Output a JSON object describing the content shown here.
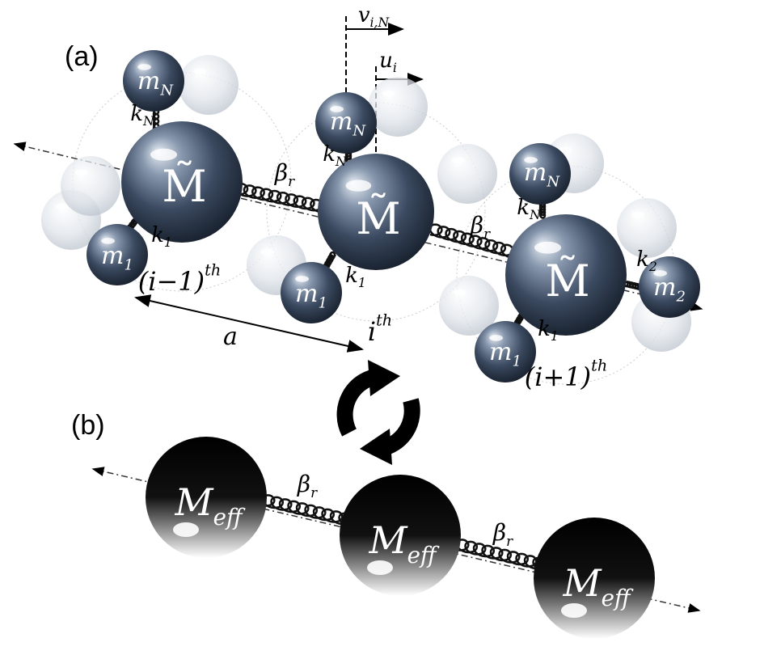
{
  "panel_a": {
    "label": "(a)",
    "labels": [
      {
        "base": "M̃"
      },
      {
        "base": "M̃"
      },
      {
        "base": "M̃"
      },
      {
        "base": "m",
        "sub": "N"
      },
      {
        "base": "m",
        "sub": "N"
      },
      {
        "base": "m",
        "sub": "N"
      },
      {
        "base": "m",
        "sub": "1"
      },
      {
        "base": "m",
        "sub": "1"
      },
      {
        "base": "m",
        "sub": "1"
      },
      {
        "base": "m",
        "sub": "2"
      },
      {
        "base": "k",
        "sub": "N"
      },
      {
        "base": "k",
        "sub": "N"
      },
      {
        "base": "k",
        "sub": "N"
      },
      {
        "base": "k",
        "sub": "1"
      },
      {
        "base": "k",
        "sub": "1"
      },
      {
        "base": "k",
        "sub": "1"
      },
      {
        "base": "k",
        "sub": "2"
      },
      {
        "base": "β",
        "sub": "r"
      },
      {
        "base": "β",
        "sub": "r"
      },
      {
        "base": "(i−1)",
        "sup": "th"
      },
      {
        "base": "i",
        "sup": "th"
      },
      {
        "base": "(i+1)",
        "sup": "th"
      },
      {
        "base": "a"
      },
      {
        "base": "v",
        "sub": "i,N"
      },
      {
        "base": "u",
        "sub": "i"
      }
    ]
  },
  "panel_b": {
    "label": "(b)",
    "labels": [
      {
        "base": "M",
        "sub": "eff"
      },
      {
        "base": "M",
        "sub": "eff"
      },
      {
        "base": "M",
        "sub": "eff"
      },
      {
        "base": "β",
        "sub": "r"
      },
      {
        "base": "β",
        "sub": "r"
      }
    ]
  }
}
